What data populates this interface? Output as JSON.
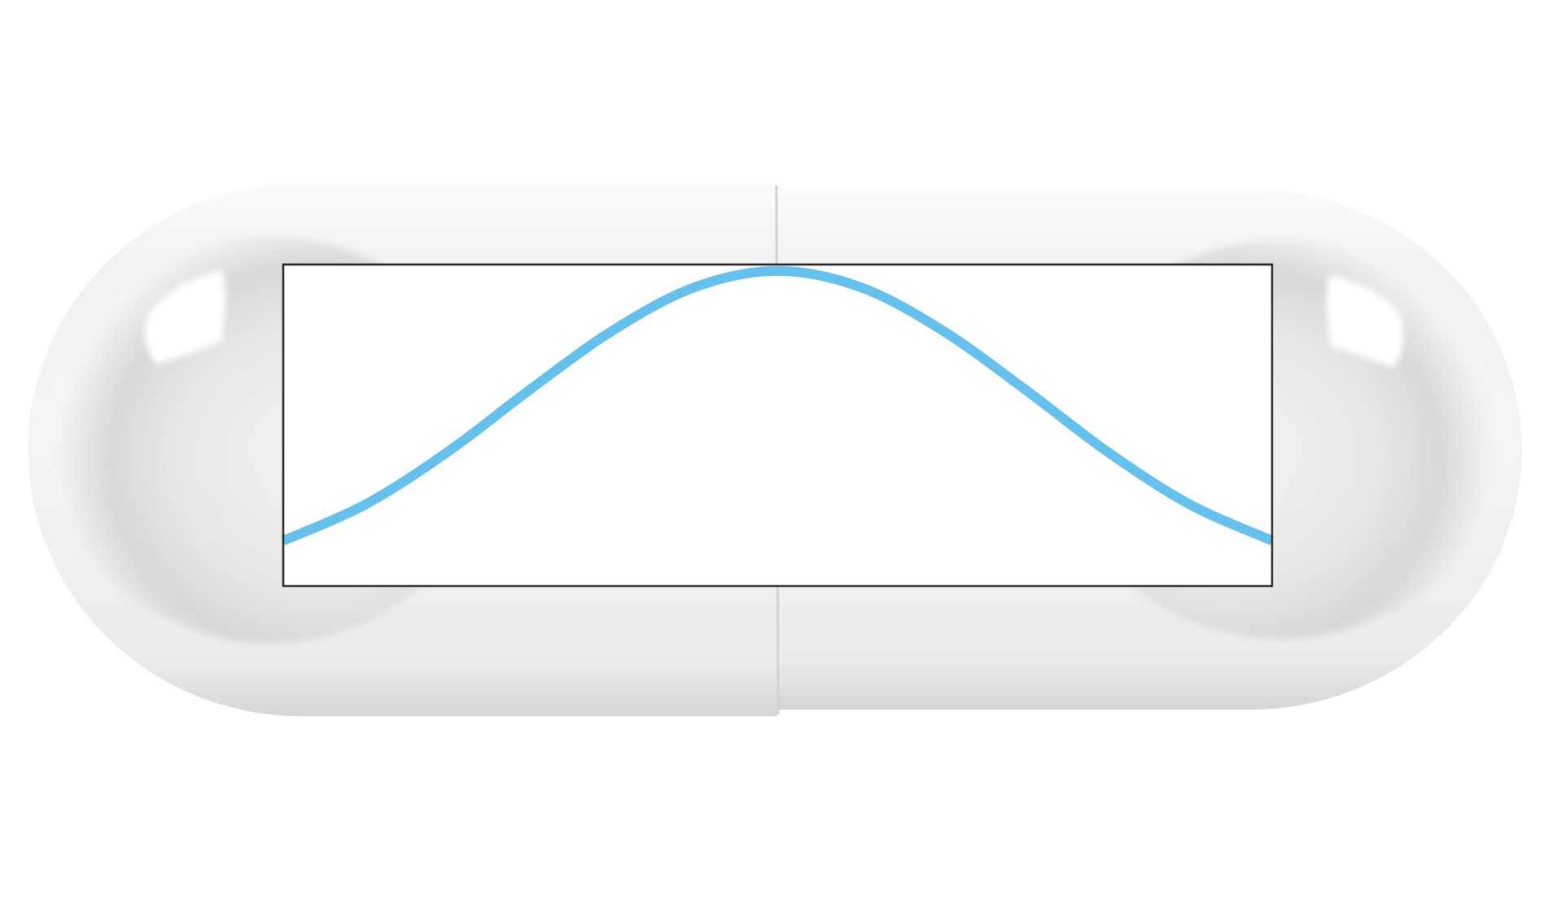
{
  "chart_data": {
    "type": "line",
    "title": "",
    "xlabel": "",
    "ylabel": "",
    "xlim": [
      -3,
      3
    ],
    "ylim": [
      0,
      1
    ],
    "grid": false,
    "legend": "none",
    "x": [
      -3.0,
      -2.5,
      -2.0,
      -1.5,
      -1.0,
      -0.5,
      0.0,
      0.5,
      1.0,
      1.5,
      2.0,
      2.5,
      3.0
    ],
    "series": [
      {
        "values": [
          0.141,
          0.254,
          0.418,
          0.612,
          0.795,
          0.93,
          0.98,
          0.93,
          0.795,
          0.612,
          0.418,
          0.254,
          0.141
        ],
        "color": "#66c0ec"
      }
    ]
  },
  "decoration": {
    "capsule_fill": "#f2f2f2",
    "capsule_shadow": "#cfcfcf",
    "frame_color": "#262626"
  }
}
